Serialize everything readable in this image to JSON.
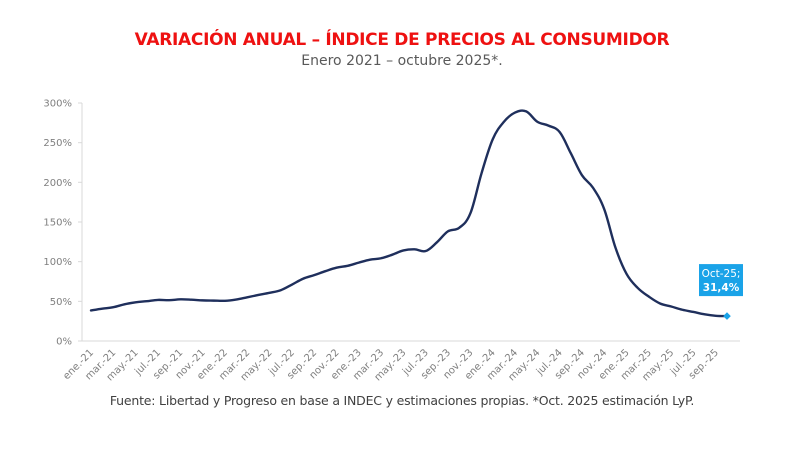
{
  "chart_data": {
    "type": "line",
    "title": "VARIACIÓN ANUAL – ÍNDICE DE PRECIOS AL CONSUMIDOR",
    "subtitle": "Enero 2021 – octubre 2025*.",
    "source": "Fuente: Libertad y Progreso en base a INDEC y estimaciones propias. *Oct. 2025 estimación LyP.",
    "xlabel": "",
    "ylabel": "",
    "ylim": [
      0,
      300
    ],
    "y_ticks": [
      0,
      50,
      100,
      150,
      200,
      250,
      300
    ],
    "y_tick_labels": [
      "0%",
      "50%",
      "100%",
      "150%",
      "200%",
      "250%",
      "300%"
    ],
    "grid": false,
    "legend": "none",
    "x_tick_labels": [
      "ene.-21",
      "mar.-21",
      "may.-21",
      "jul.-21",
      "sep.-21",
      "nov.-21",
      "ene.-22",
      "mar.-22",
      "may.-22",
      "jul.-22",
      "sep.-22",
      "nov.-22",
      "ene.-23",
      "mar.-23",
      "may.-23",
      "jul.-23",
      "sep.-23",
      "nov.-23",
      "ene.-24",
      "mar.-24",
      "may.-24",
      "jul.-24",
      "sep.-24",
      "nov.-24",
      "ene.-25",
      "mar.-25",
      "may.-25",
      "jul.-25",
      "sep.-25"
    ],
    "x": [
      "ene.-21",
      "feb.-21",
      "mar.-21",
      "abr.-21",
      "may.-21",
      "jun.-21",
      "jul.-21",
      "ago.-21",
      "sep.-21",
      "oct.-21",
      "nov.-21",
      "dic.-21",
      "ene.-22",
      "feb.-22",
      "mar.-22",
      "abr.-22",
      "may.-22",
      "jun.-22",
      "jul.-22",
      "ago.-22",
      "sep.-22",
      "oct.-22",
      "nov.-22",
      "dic.-22",
      "ene.-23",
      "feb.-23",
      "mar.-23",
      "abr.-23",
      "may.-23",
      "jun.-23",
      "jul.-23",
      "ago.-23",
      "sep.-23",
      "oct.-23",
      "nov.-23",
      "dic.-23",
      "ene.-24",
      "feb.-24",
      "mar.-24",
      "abr.-24",
      "may.-24",
      "jun.-24",
      "jul.-24",
      "ago.-24",
      "sep.-24",
      "oct.-24",
      "nov.-24",
      "dic.-24",
      "ene.-25",
      "feb.-25",
      "mar.-25",
      "abr.-25",
      "may.-25",
      "jun.-25",
      "jul.-25",
      "ago.-25",
      "sep.-25",
      "oct.-25"
    ],
    "series": [
      {
        "name": "Variación anual IPC (%)",
        "color": "#1f2f5c",
        "values": [
          38.5,
          40.7,
          42.6,
          46.3,
          48.8,
          50.2,
          51.8,
          51.4,
          52.5,
          52.1,
          51.2,
          50.9,
          50.7,
          52.3,
          55.1,
          58.0,
          60.7,
          64.0,
          71.0,
          78.5,
          83.0,
          88.0,
          92.4,
          94.8,
          98.8,
          102.5,
          104.3,
          108.8,
          114.2,
          115.6,
          113.4,
          124.4,
          138.3,
          142.7,
          160.9,
          211.4,
          254.2,
          276.2,
          287.9,
          289.4,
          276.4,
          271.5,
          263.4,
          236.7,
          209.0,
          193.0,
          166.0,
          117.8,
          84.5,
          66.9,
          55.9,
          47.3,
          43.5,
          39.4,
          36.6,
          33.6,
          31.8,
          31.4
        ]
      }
    ],
    "annotations": [
      {
        "point": "oct.-25",
        "line1": "Oct-25;",
        "line2": "31,4%",
        "color": "#1aa3e8"
      }
    ]
  }
}
